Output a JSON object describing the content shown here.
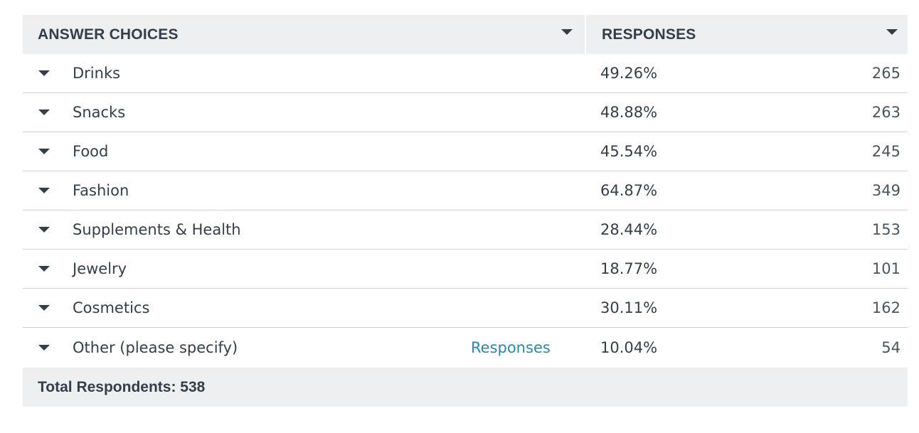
{
  "header": {
    "choices_label": "ANSWER CHOICES",
    "responses_label": "RESPONSES"
  },
  "rows": [
    {
      "label": "Drinks",
      "pct": "49.26%",
      "count": "265",
      "link": ""
    },
    {
      "label": "Snacks",
      "pct": "48.88%",
      "count": "263",
      "link": ""
    },
    {
      "label": "Food",
      "pct": "45.54%",
      "count": "245",
      "link": ""
    },
    {
      "label": "Fashion",
      "pct": "64.87%",
      "count": "349",
      "link": ""
    },
    {
      "label": "Supplements & Health",
      "pct": "28.44%",
      "count": "153",
      "link": ""
    },
    {
      "label": "Jewelry",
      "pct": "18.77%",
      "count": "101",
      "link": ""
    },
    {
      "label": "Cosmetics",
      "pct": "30.11%",
      "count": "162",
      "link": ""
    },
    {
      "label": "Other (please specify)",
      "pct": "10.04%",
      "count": "54",
      "link": "Responses"
    }
  ],
  "footer": {
    "total_label": "Total Respondents: 538"
  },
  "colors": {
    "header_bg": "#eeeff0",
    "text": "#333e48",
    "link": "#2b87a8",
    "divider": "#d0d2d3"
  },
  "icons": {
    "header_sort": "caret-down-icon",
    "row_toggle": "caret-down-icon"
  }
}
